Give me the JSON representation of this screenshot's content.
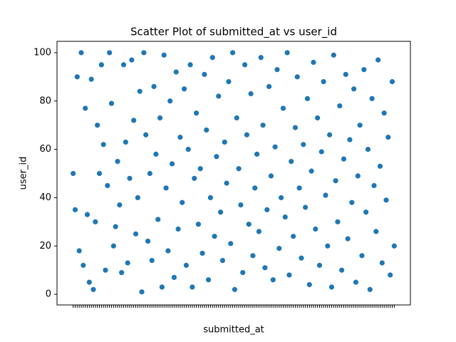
{
  "chart_data": {
    "type": "scatter",
    "title": "Scatter Plot of submitted_at vs user_id",
    "x_label": "submitted_at",
    "y_label": "user_id",
    "x": [
      0,
      1,
      2,
      3,
      4,
      5,
      6,
      7,
      8,
      9,
      10,
      11,
      12,
      13,
      14,
      15,
      16,
      17,
      18,
      19,
      20,
      21,
      22,
      23,
      24,
      25,
      26,
      27,
      28,
      29,
      30,
      31,
      32,
      33,
      34,
      35,
      36,
      37,
      38,
      39,
      40,
      41,
      42,
      43,
      44,
      45,
      46,
      47,
      48,
      49,
      50,
      51,
      52,
      53,
      54,
      55,
      56,
      57,
      58,
      59,
      60,
      61,
      62,
      63,
      64,
      65,
      66,
      67,
      68,
      69,
      70,
      71,
      72,
      73,
      74,
      75,
      76,
      77,
      78,
      79,
      80,
      81,
      82,
      83,
      84,
      85,
      86,
      87,
      88,
      89,
      90,
      91,
      92,
      93,
      94,
      95,
      96,
      97,
      98,
      99,
      100,
      101,
      102,
      103,
      104,
      105,
      106,
      107,
      108,
      109,
      110,
      111,
      112,
      113,
      114,
      115,
      116,
      117,
      118,
      119,
      120,
      121,
      122,
      123,
      124,
      125,
      126,
      127,
      128,
      129,
      130,
      131,
      132,
      133,
      134,
      135,
      136,
      137,
      138,
      139,
      140,
      141,
      142,
      143,
      144,
      145,
      146,
      147,
      148,
      149,
      150,
      151,
      152,
      153,
      154,
      155,
      156,
      157,
      158,
      159
    ],
    "values": [
      50,
      35,
      90,
      18,
      100,
      12,
      77,
      33,
      5,
      89,
      2,
      30,
      70,
      50,
      95,
      62,
      10,
      45,
      100,
      79,
      20,
      28,
      55,
      37,
      9,
      95,
      63,
      13,
      48,
      97,
      72,
      25,
      40,
      84,
      1,
      100,
      66,
      22,
      50,
      14,
      86,
      58,
      31,
      73,
      3,
      99,
      44,
      18,
      80,
      54,
      7,
      92,
      27,
      65,
      38,
      85,
      12,
      60,
      95,
      3,
      48,
      75,
      29,
      52,
      17,
      91,
      68,
      6,
      40,
      98,
      24,
      57,
      82,
      34,
      14,
      63,
      46,
      88,
      21,
      100,
      2,
      73,
      52,
      37,
      9,
      95,
      66,
      29,
      83,
      16,
      44,
      58,
      26,
      98,
      70,
      11,
      35,
      86,
      49,
      6,
      61,
      93,
      19,
      40,
      77,
      32,
      100,
      8,
      55,
      24,
      69,
      90,
      44,
      15,
      62,
      36,
      81,
      4,
      51,
      96,
      27,
      73,
      12,
      59,
      88,
      41,
      20,
      66,
      3,
      99,
      47,
      30,
      78,
      10,
      56,
      91,
      23,
      64,
      38,
      85,
      5,
      49,
      70,
      16,
      93,
      34,
      60,
      2,
      81,
      45,
      26,
      97,
      53,
      13,
      75,
      39,
      65,
      8,
      88,
      20
    ],
    "color": "#1f77b4",
    "xlim": [
      -8,
      167
    ],
    "ylim": [
      -4.4,
      104.7
    ],
    "yticks": [
      0,
      20,
      40,
      60,
      80,
      100
    ]
  }
}
